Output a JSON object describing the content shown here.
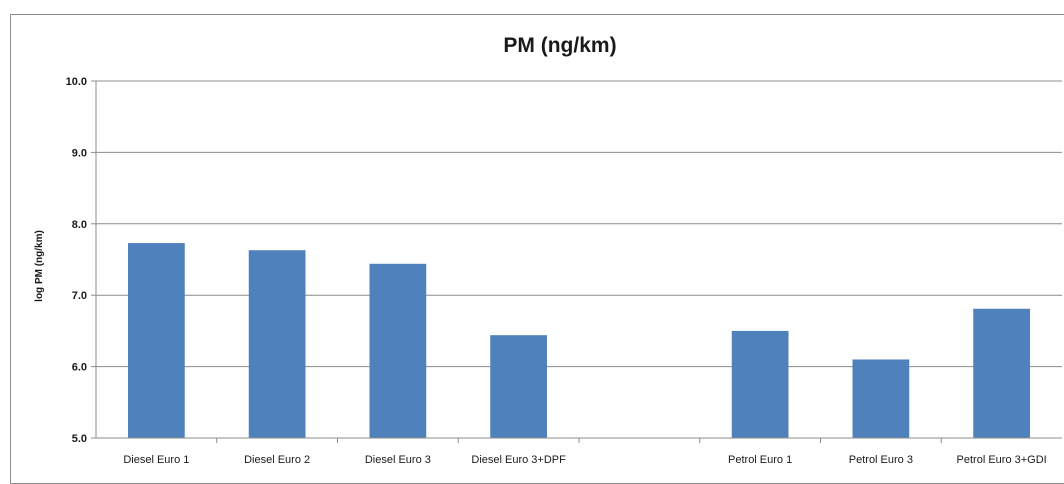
{
  "chart_data": {
    "type": "bar",
    "title": "PM (ng/km)",
    "xlabel": "",
    "ylabel": "log PM (ng/km)",
    "ylim": [
      5.0,
      10.0
    ],
    "yticks": [
      "5.0",
      "6.0",
      "7.0",
      "8.0",
      "9.0",
      "10.0"
    ],
    "grid": true,
    "categories": [
      "Diesel  Euro 1",
      "Diesel  Euro 2",
      "Diesel  Euro 3",
      "Diesel  Euro 3+DPF",
      "",
      "Petrol Euro 1",
      "Petrol Euro 3",
      "Petrol Euro 3+GDI"
    ],
    "values": [
      7.73,
      7.63,
      7.44,
      6.44,
      null,
      6.5,
      6.1,
      6.81
    ],
    "bar_color": "#4f81bd",
    "grid_color": "#8c8c8c"
  }
}
